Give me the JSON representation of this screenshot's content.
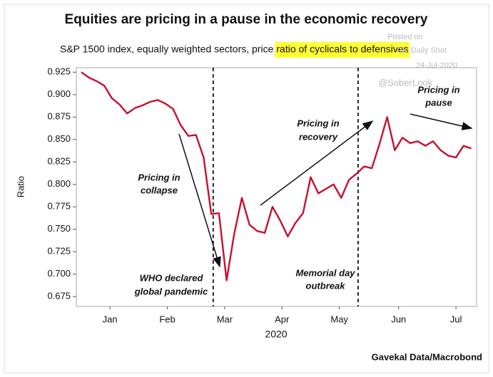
{
  "chart_data": {
    "type": "line",
    "title": "Equities are pricing in a pause in the economic recovery",
    "subtitle": [
      "S&P 1500 index, equally weighted sectors, price",
      "ratio of cyclicals to defensives"
    ],
    "y_label": "Ratio",
    "x_label": "2020",
    "source": "Gavekal Data/Macrobond",
    "watermark": [
      "Posted on",
      "The Daily Shot",
      "24-Jul-2020",
      "@SoberLook"
    ],
    "series": [
      {
        "name": "Ratio",
        "color": "#c8102e",
        "values": [
          0.925,
          0.919,
          0.915,
          0.91,
          0.896,
          0.889,
          0.879,
          0.885,
          0.888,
          0.892,
          0.894,
          0.89,
          0.884,
          0.866,
          0.854,
          0.855,
          0.83,
          0.767,
          0.768,
          0.693,
          0.745,
          0.785,
          0.755,
          0.748,
          0.746,
          0.775,
          0.76,
          0.742,
          0.757,
          0.768,
          0.808,
          0.79,
          0.795,
          0.8,
          0.785,
          0.805,
          0.812,
          0.82,
          0.818,
          0.845,
          0.875,
          0.838,
          0.852,
          0.846,
          0.848,
          0.843,
          0.848,
          0.838,
          0.832,
          0.83,
          0.843,
          0.84
        ]
      }
    ],
    "xlim": [
      -0.65,
      51.7
    ],
    "xticks": [
      {
        "value": 3.75,
        "label": "Jan"
      },
      {
        "value": 11.25,
        "label": "Feb"
      },
      {
        "value": 18.75,
        "label": "Mar"
      },
      {
        "value": 26.25,
        "label": "Apr"
      },
      {
        "value": 33.75,
        "label": "May"
      },
      {
        "value": 41.5,
        "label": "Jun"
      },
      {
        "value": 49,
        "label": "Jul"
      }
    ],
    "ylim": [
      0.664,
      0.93
    ],
    "yticks": [
      0.675,
      {
        "value": 0.7,
        "label": "0.700"
      },
      0.725,
      {
        "value": 0.75,
        "label": "0.750"
      },
      0.775,
      {
        "value": 0.8,
        "label": "0.800"
      },
      0.825,
      {
        "value": 0.85,
        "label": "0.850"
      },
      0.875,
      {
        "value": 0.9,
        "label": "0.900"
      },
      0.925
    ],
    "vlines": [
      17.25,
      36.2
    ],
    "annotations": [
      {
        "lines": [
          "Pricing in",
          "collapse"
        ]
      },
      {
        "lines": [
          "WHO declared",
          "global pandemic"
        ]
      },
      {
        "lines": [
          "Pricing in",
          "recovery"
        ]
      },
      {
        "lines": [
          "Memorial day",
          "outbreak"
        ]
      },
      {
        "lines": [
          "Pricing in",
          "pause"
        ]
      }
    ]
  }
}
